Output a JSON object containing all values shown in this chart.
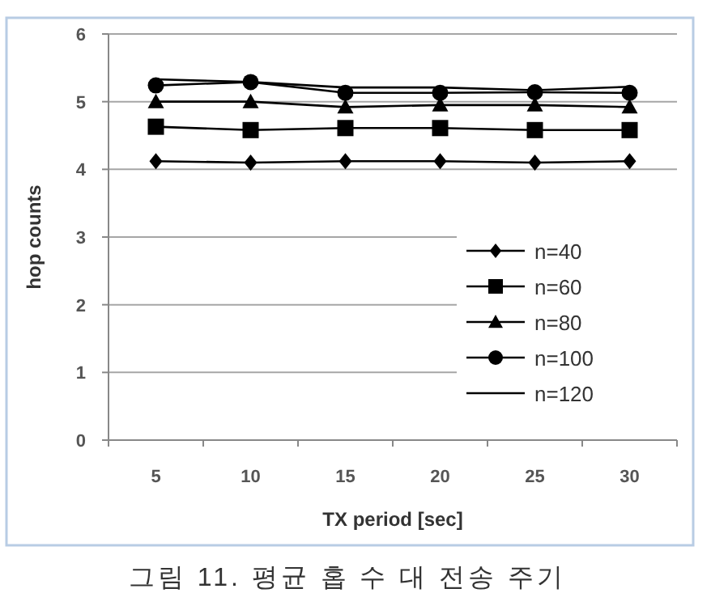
{
  "chart_data": {
    "type": "line",
    "xlabel": "TX period [sec]",
    "ylabel": "hop counts",
    "annotations": [
      "그림 11. 평균 홉 수 대 전송 주기"
    ],
    "categories": [
      "5",
      "10",
      "15",
      "20",
      "25",
      "30"
    ],
    "series": [
      {
        "name": "n=40",
        "color": "#000000",
        "marker": "diamond",
        "values": [
          4.12,
          4.1,
          4.12,
          4.12,
          4.1,
          4.12
        ]
      },
      {
        "name": "n=60",
        "color": "#000000",
        "marker": "square",
        "values": [
          4.63,
          4.58,
          4.61,
          4.61,
          4.58,
          4.58
        ]
      },
      {
        "name": "n=80",
        "color": "#000000",
        "marker": "triangle",
        "values": [
          5.0,
          5.0,
          4.92,
          4.95,
          4.95,
          4.92
        ]
      },
      {
        "name": "n=100",
        "color": "#000000",
        "marker": "circle",
        "values": [
          5.24,
          5.29,
          5.13,
          5.13,
          5.14,
          5.13
        ]
      },
      {
        "name": "n=120",
        "color": "#000000",
        "marker": "none",
        "values": [
          5.33,
          5.29,
          5.21,
          5.21,
          5.17,
          5.22
        ]
      }
    ],
    "ylim": [
      0,
      6
    ],
    "yticks": [
      0,
      1,
      2,
      3,
      4,
      5,
      6
    ],
    "grid": "y",
    "legend": "bottom right"
  }
}
